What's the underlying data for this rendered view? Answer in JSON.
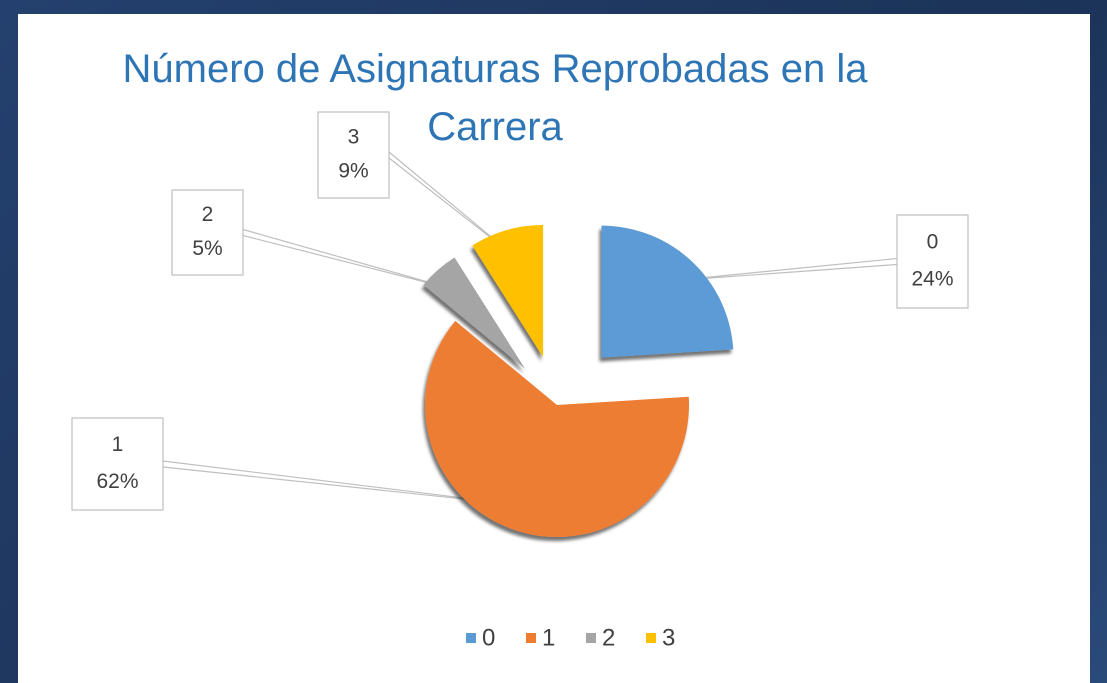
{
  "chart_data": {
    "type": "pie",
    "title": "Número de Asignaturas Reprobadas en la Carrera",
    "categories": [
      "0",
      "1",
      "2",
      "3"
    ],
    "values": [
      24,
      62,
      5,
      9
    ],
    "value_labels": [
      "24%",
      "62%",
      "5%",
      "9%"
    ],
    "colors": [
      "#5b9bd5",
      "#ed7d31",
      "#a5a5a5",
      "#ffc000"
    ],
    "legend": "bottom"
  }
}
